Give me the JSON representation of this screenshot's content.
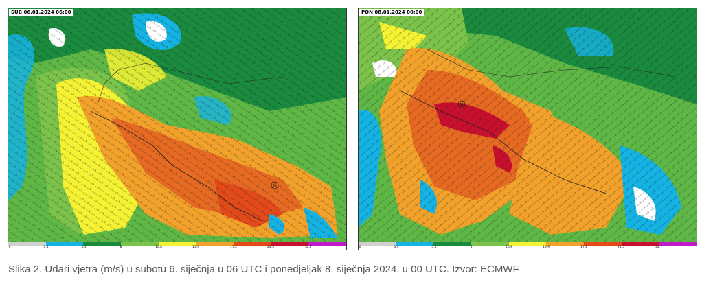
{
  "figure": {
    "caption": "Slika 2. Udari vjetra (m/s) u subotu 6. siječnja u 06 UTC i ponedjeljak 8. siječnja 2024. u 00 UTC. Izvor: ECMWF"
  },
  "colorbar": {
    "ticks": [
      "0",
      "3.4",
      "5.5",
      "8",
      "10.8",
      "13.9",
      "17.2",
      "24.5",
      "32.7"
    ],
    "colors": [
      "#d0d0d0",
      "#15b3e3",
      "#1a8a3e",
      "#7bc34a",
      "#f4f232",
      "#f2a22a",
      "#e34a1a",
      "#c8102e",
      "#c01bc8"
    ]
  },
  "panels": [
    {
      "timestamp": "SUB 06.01.2024 06:00",
      "max_marker": "2x"
    },
    {
      "timestamp": "PON 08.01.2024 00:00",
      "max_marker": "31"
    }
  ]
}
